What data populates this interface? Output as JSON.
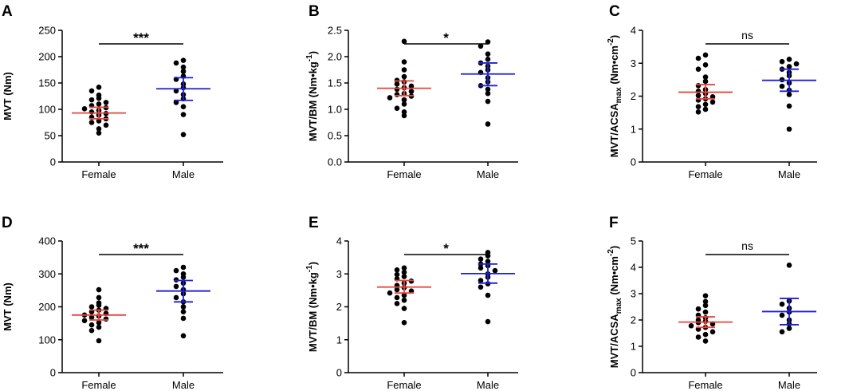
{
  "figure": {
    "female_color": "#e8443a",
    "male_color": "#1f1fd6",
    "dot_color": "#000000"
  },
  "chart_data": [
    {
      "panel": "A",
      "type": "scatter",
      "ylabel": "MVT (Nm)",
      "ylabel_sub": "",
      "ylabel_tail": "",
      "ylim": [
        0,
        250
      ],
      "yticks": [
        0,
        50,
        100,
        150,
        200,
        250
      ],
      "categories": [
        "Female",
        "Male"
      ],
      "significance": "***",
      "groups": [
        {
          "name": "Female",
          "mean": 93,
          "ci": [
            82,
            104
          ],
          "values": [
            142,
            135,
            127,
            121,
            118,
            113,
            110,
            107,
            103,
            101,
            98,
            95,
            92,
            89,
            85,
            82,
            78,
            75,
            70,
            63,
            55
          ]
        },
        {
          "name": "Male",
          "mean": 139,
          "ci": [
            117,
            160
          ],
          "values": [
            193,
            188,
            180,
            172,
            163,
            157,
            148,
            141,
            135,
            128,
            120,
            113,
            105,
            90,
            52
          ]
        }
      ]
    },
    {
      "panel": "B",
      "type": "scatter",
      "ylabel": "MVT/BM (Nm•kg",
      "ylabel_sub": "",
      "ylabel_tail": ")",
      "ylabel_sup": "-1",
      "ylim": [
        0,
        2.5
      ],
      "yticks": [
        0.0,
        0.5,
        1.0,
        1.5,
        2.0,
        2.5
      ],
      "tick_decimals": 1,
      "categories": [
        "Female",
        "Male"
      ],
      "significance": "*",
      "groups": [
        {
          "name": "Female",
          "mean": 1.4,
          "ci": [
            1.26,
            1.54
          ],
          "values": [
            2.29,
            1.9,
            1.75,
            1.62,
            1.55,
            1.52,
            1.48,
            1.44,
            1.41,
            1.38,
            1.34,
            1.3,
            1.28,
            1.25,
            1.22,
            1.18,
            1.1,
            1.02,
            0.95,
            0.88
          ]
        },
        {
          "name": "Male",
          "mean": 1.67,
          "ci": [
            1.45,
            1.88
          ],
          "values": [
            2.28,
            2.2,
            2.05,
            1.95,
            1.88,
            1.82,
            1.75,
            1.7,
            1.6,
            1.52,
            1.45,
            1.38,
            1.3,
            1.15,
            0.72
          ]
        }
      ]
    },
    {
      "panel": "C",
      "type": "scatter",
      "ylabel": "MVT/ACSA",
      "ylabel_sub": "max",
      "ylabel_tail": " (Nm•cm",
      "ylabel_sup": "-2",
      "ylabel_end": ")",
      "ylim": [
        0,
        4
      ],
      "yticks": [
        0,
        1,
        2,
        3,
        4
      ],
      "categories": [
        "Female",
        "Male"
      ],
      "significance": "ns",
      "groups": [
        {
          "name": "Female",
          "mean": 2.12,
          "ci": [
            1.92,
            2.35
          ],
          "values": [
            3.25,
            3.15,
            2.95,
            2.82,
            2.58,
            2.45,
            2.32,
            2.2,
            2.15,
            2.08,
            2.02,
            1.98,
            1.92,
            1.88,
            1.82,
            1.75,
            1.68,
            1.6,
            1.52
          ]
        },
        {
          "name": "Male",
          "mean": 2.48,
          "ci": [
            2.15,
            2.82
          ],
          "values": [
            3.12,
            3.05,
            2.98,
            2.9,
            2.82,
            2.72,
            2.62,
            2.5,
            2.4,
            2.3,
            2.18,
            2.05,
            1.7,
            1.0
          ]
        }
      ]
    },
    {
      "panel": "D",
      "type": "scatter",
      "ylabel": "MVT (Nm)",
      "ylabel_sub": "",
      "ylabel_tail": "",
      "ylim": [
        0,
        400
      ],
      "yticks": [
        0,
        100,
        200,
        300,
        400
      ],
      "categories": [
        "Female",
        "Male"
      ],
      "significance": "***",
      "groups": [
        {
          "name": "Female",
          "mean": 175,
          "ci": [
            160,
            190
          ],
          "values": [
            252,
            228,
            212,
            205,
            200,
            195,
            190,
            185,
            180,
            175,
            172,
            168,
            163,
            158,
            152,
            145,
            138,
            128,
            97
          ]
        },
        {
          "name": "Male",
          "mean": 248,
          "ci": [
            215,
            280
          ],
          "values": [
            320,
            310,
            300,
            290,
            282,
            272,
            262,
            252,
            240,
            228,
            215,
            200,
            185,
            165,
            112
          ]
        }
      ]
    },
    {
      "panel": "E",
      "type": "scatter",
      "ylabel": "MVT/BM (Nm•kg",
      "ylabel_sub": "",
      "ylabel_tail": ")",
      "ylabel_sup": "-1",
      "ylim": [
        0,
        4
      ],
      "yticks": [
        0,
        1,
        2,
        3,
        4
      ],
      "categories": [
        "Female",
        "Male"
      ],
      "significance": "*",
      "groups": [
        {
          "name": "Female",
          "mean": 2.6,
          "ci": [
            2.42,
            2.8
          ],
          "values": [
            3.18,
            3.12,
            3.05,
            2.98,
            2.92,
            2.85,
            2.78,
            2.72,
            2.65,
            2.58,
            2.52,
            2.48,
            2.42,
            2.35,
            2.28,
            2.2,
            2.1,
            1.95,
            1.52
          ]
        },
        {
          "name": "Male",
          "mean": 3.01,
          "ci": [
            2.72,
            3.3
          ],
          "values": [
            3.65,
            3.55,
            3.45,
            3.38,
            3.3,
            3.25,
            3.18,
            3.1,
            3.0,
            2.9,
            2.8,
            2.7,
            2.6,
            2.35,
            1.55
          ]
        }
      ]
    },
    {
      "panel": "F",
      "type": "scatter",
      "ylabel": "MVT/ACSA",
      "ylabel_sub": "max",
      "ylabel_tail": " (Nm•cm",
      "ylabel_sup": "-2",
      "ylabel_end": ")",
      "ylim": [
        0,
        5
      ],
      "yticks": [
        0,
        1,
        2,
        3,
        4,
        5
      ],
      "categories": [
        "Female",
        "Male"
      ],
      "significance": "ns",
      "groups": [
        {
          "name": "Female",
          "mean": 1.92,
          "ci": [
            1.72,
            2.12
          ],
          "values": [
            2.92,
            2.7,
            2.55,
            2.42,
            2.3,
            2.18,
            2.08,
            2.0,
            1.95,
            1.9,
            1.85,
            1.78,
            1.72,
            1.65,
            1.55,
            1.45,
            1.35,
            1.2
          ]
        },
        {
          "name": "Male",
          "mean": 2.32,
          "ci": [
            1.82,
            2.82
          ],
          "values": [
            4.08,
            2.72,
            2.6,
            2.45,
            2.3,
            2.18,
            2.0,
            1.85,
            1.68,
            1.55
          ]
        }
      ]
    }
  ]
}
